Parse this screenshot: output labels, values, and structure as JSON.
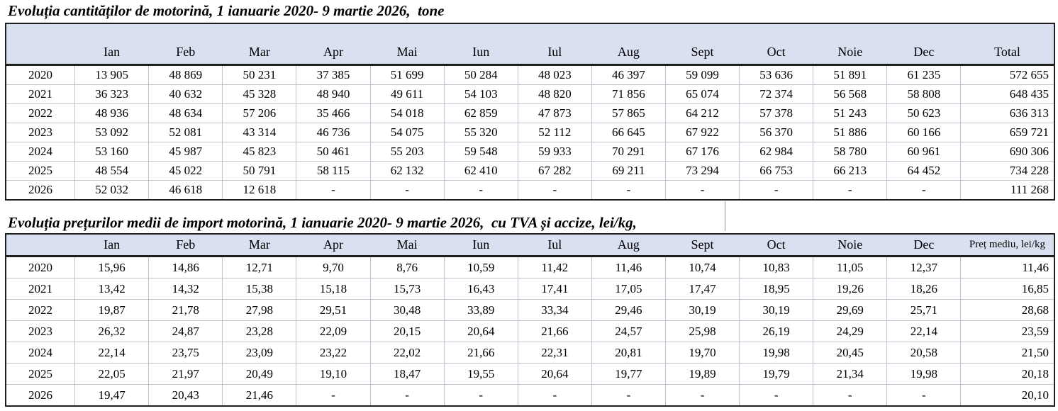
{
  "colors": {
    "header_fill": "#d9e0f0",
    "outer_border": "#1f1f1f",
    "grid_line": "#c0c4cc"
  },
  "chart_data": [
    {
      "type": "table",
      "title": "Evoluția cantităților de motorină, 1 ianuarie 2020- 9 martie 2026,  tone",
      "unit": "tone",
      "columns": [
        "",
        "Ian",
        "Feb",
        "Mar",
        "Apr",
        "Mai",
        "Iun",
        "Iul",
        "Aug",
        "Sept",
        "Oct",
        "Noie",
        "Dec",
        "Total"
      ],
      "rows": [
        [
          "2020",
          "13 905",
          "48 869",
          "50 231",
          "37 385",
          "51 699",
          "50 284",
          "48 023",
          "46 397",
          "59 099",
          "53 636",
          "51 891",
          "61 235",
          "572 655"
        ],
        [
          "2021",
          "36 323",
          "40 632",
          "45 328",
          "48 940",
          "49 611",
          "54 103",
          "48 820",
          "71 856",
          "65 074",
          "72 374",
          "56 568",
          "58 808",
          "648 435"
        ],
        [
          "2022",
          "48 936",
          "48 634",
          "57 206",
          "35 466",
          "54 018",
          "62 859",
          "47 873",
          "57 865",
          "64 212",
          "57 378",
          "51 243",
          "50 623",
          "636 313"
        ],
        [
          "2023",
          "53 092",
          "52 081",
          "43 314",
          "46 736",
          "54 075",
          "55 320",
          "52 112",
          "66 645",
          "67 922",
          "56 370",
          "51 886",
          "60 166",
          "659 721"
        ],
        [
          "2024",
          "53 160",
          "45 987",
          "45 823",
          "50 461",
          "55 203",
          "59 548",
          "59 933",
          "70 291",
          "67 176",
          "62 984",
          "58 780",
          "60 961",
          "690 306"
        ],
        [
          "2025",
          "48 554",
          "45 022",
          "50 791",
          "58 115",
          "62 132",
          "62 410",
          "67 282",
          "69 211",
          "73 294",
          "66 753",
          "66 213",
          "64 452",
          "734 228"
        ],
        [
          "2026",
          "52 032",
          "46 618",
          "12 618",
          "-",
          "-",
          "-",
          "-",
          "-",
          "-",
          "-",
          "-",
          "-",
          "111 268"
        ]
      ]
    },
    {
      "type": "table",
      "title": "Evoluția prețurilor medii de import motorină, 1 ianuarie 2020- 9 martie 2026,  cu TVA și accize, lei/kg,",
      "unit": "lei/kg",
      "columns": [
        "",
        "Ian",
        "Feb",
        "Mar",
        "Apr",
        "Mai",
        "Iun",
        "Iul",
        "Aug",
        "Sept",
        "Oct",
        "Noie",
        "Dec",
        "Preț mediu, lei/kg"
      ],
      "rows": [
        [
          "2020",
          "15,96",
          "14,86",
          "12,71",
          "9,70",
          "8,76",
          "10,59",
          "11,42",
          "11,46",
          "10,74",
          "10,83",
          "11,05",
          "12,37",
          "11,46"
        ],
        [
          "2021",
          "13,42",
          "14,32",
          "15,38",
          "15,18",
          "15,73",
          "16,43",
          "17,41",
          "17,05",
          "17,47",
          "18,95",
          "19,26",
          "18,26",
          "16,85"
        ],
        [
          "2022",
          "19,87",
          "21,78",
          "27,98",
          "29,51",
          "30,48",
          "33,89",
          "33,34",
          "29,46",
          "30,19",
          "30,19",
          "29,69",
          "25,71",
          "28,68"
        ],
        [
          "2023",
          "26,32",
          "24,87",
          "23,28",
          "22,09",
          "20,15",
          "20,64",
          "21,66",
          "24,57",
          "25,98",
          "26,19",
          "24,29",
          "22,14",
          "23,59"
        ],
        [
          "2024",
          "22,14",
          "23,75",
          "23,09",
          "23,22",
          "22,02",
          "21,66",
          "22,31",
          "20,81",
          "19,70",
          "19,98",
          "20,45",
          "20,58",
          "21,50"
        ],
        [
          "2025",
          "22,05",
          "21,97",
          "20,49",
          "19,10",
          "18,47",
          "19,55",
          "20,64",
          "19,77",
          "19,89",
          "19,79",
          "21,34",
          "19,98",
          "20,18"
        ],
        [
          "2026",
          "19,47",
          "20,43",
          "21,46",
          "-",
          "-",
          "-",
          "-",
          "-",
          "-",
          "-",
          "-",
          "-",
          "20,10"
        ]
      ]
    }
  ]
}
